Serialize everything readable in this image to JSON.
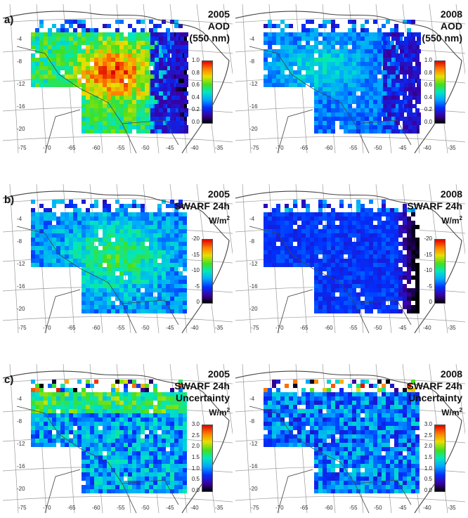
{
  "rows": [
    {
      "label": "a)",
      "year_left": "2005",
      "year_right": "2008",
      "title_left": [
        "2005",
        "AOD",
        "(550 nm)"
      ],
      "title_right": [
        "2008",
        "AOD",
        "(550 nm)"
      ],
      "ticks": [
        "1.0",
        "0.8",
        "0.6",
        "0.4",
        "0.2",
        "0.0"
      ]
    },
    {
      "label": "b)",
      "title_left": [
        "2005",
        "SWARF 24h",
        "W/m"
      ],
      "title_right": [
        "2008",
        "SWARF 24h",
        "W/m"
      ],
      "ticks": [
        "-20",
        "-15",
        "-10",
        "-5",
        "0"
      ]
    },
    {
      "label": "c)",
      "title_left": [
        "2005",
        "SWARF 24h",
        "Uncertainty",
        "W/m"
      ],
      "title_right": [
        "2008",
        "SWARF 24h",
        "Uncertainty",
        "W/m"
      ],
      "ticks": [
        "3.0",
        "2.5",
        "2.0",
        "1.5",
        "1.0",
        "0.5",
        "0.0"
      ]
    }
  ],
  "lon_labels": [
    "-75",
    "-70",
    "-65",
    "-60",
    "-55",
    "-50",
    "-45",
    "-40",
    "-35"
  ],
  "lat_labels": [
    "-4",
    "-8",
    "-12",
    "-16",
    "-20"
  ],
  "colors": {
    "colormap": [
      "#000000",
      "#3a00a0",
      "#0030ff",
      "#00a8ff",
      "#00e8c0",
      "#40e020",
      "#e8e000",
      "#ff8000",
      "#e00000"
    ],
    "coastline": "#444444",
    "grid": "#9a9a9a"
  }
}
